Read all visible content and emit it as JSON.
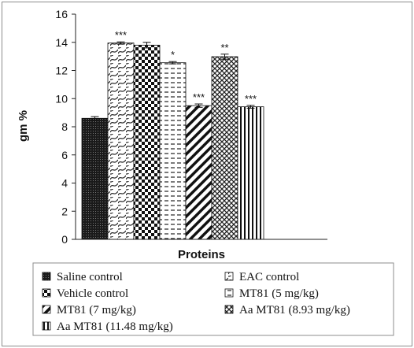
{
  "chart_data": {
    "type": "bar",
    "title": "",
    "xlabel": "Proteins",
    "ylabel": "gm %",
    "ylim": [
      0,
      16
    ],
    "yticks": [
      0,
      2,
      4,
      6,
      8,
      10,
      12,
      14,
      16
    ],
    "grid": false,
    "legend_position": "bottom",
    "series": [
      {
        "name": "Saline control",
        "value": 8.6,
        "error": 0.12,
        "significance": "",
        "pattern": "pat-dense-dots"
      },
      {
        "name": "EAC control",
        "value": 13.95,
        "error": 0.08,
        "significance": "***",
        "pattern": "pat-wave"
      },
      {
        "name": "Vehicle control",
        "value": 13.8,
        "error": 0.2,
        "significance": "",
        "pattern": "pat-checker"
      },
      {
        "name": "MT81 (5 mg/kg)",
        "value": 12.55,
        "error": 0.08,
        "significance": "*",
        "pattern": "pat-dashes"
      },
      {
        "name": "MT81 (7 mg/kg)",
        "value": 9.5,
        "error": 0.12,
        "significance": "***",
        "pattern": "pat-diag"
      },
      {
        "name": "Aa MT81 (8.93 mg/kg)",
        "value": 12.98,
        "error": 0.18,
        "significance": "**",
        "pattern": "pat-cross"
      },
      {
        "name": "Aa MT81 (11.48 mg/kg)",
        "value": 9.42,
        "error": 0.1,
        "significance": "***",
        "pattern": "pat-vert"
      }
    ]
  }
}
